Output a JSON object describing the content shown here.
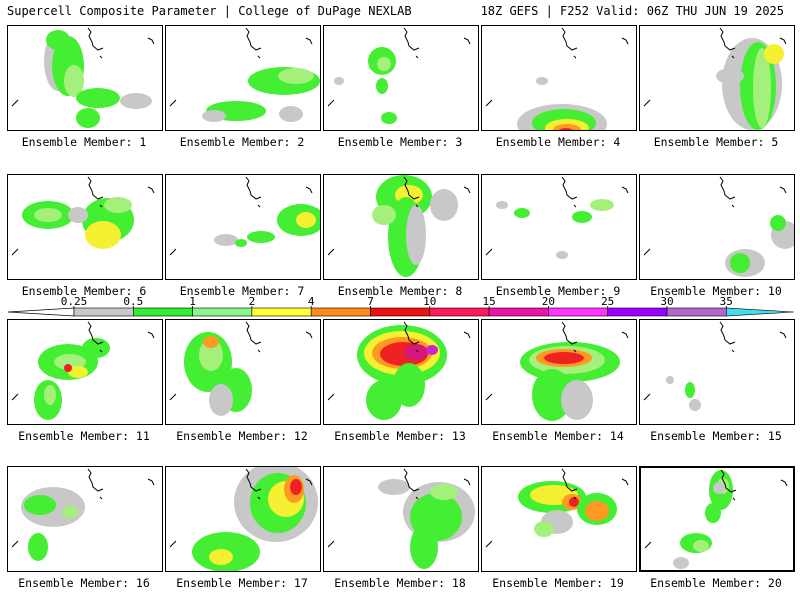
{
  "header": {
    "title": "Supercell Composite Parameter | College of DuPage NEXLAB",
    "run_info": "18Z GEFS | F252 Valid: 06Z THU JUN 19 2025"
  },
  "member_label_prefix": "Ensemble Member: ",
  "members": [
    {
      "id": "1"
    },
    {
      "id": "2"
    },
    {
      "id": "3"
    },
    {
      "id": "4"
    },
    {
      "id": "5"
    },
    {
      "id": "6"
    },
    {
      "id": "7"
    },
    {
      "id": "8"
    },
    {
      "id": "9"
    },
    {
      "id": "10"
    },
    {
      "id": "11"
    },
    {
      "id": "12"
    },
    {
      "id": "13"
    },
    {
      "id": "14"
    },
    {
      "id": "15"
    },
    {
      "id": "16"
    },
    {
      "id": "17"
    },
    {
      "id": "18"
    },
    {
      "id": "19"
    },
    {
      "id": "20"
    }
  ],
  "selected_member": "20",
  "colorbar": {
    "ticks": [
      "0.25",
      "0.5",
      "1",
      "2",
      "4",
      "7",
      "10",
      "15",
      "20",
      "25",
      "30",
      "35"
    ],
    "colors": [
      "#c8c8c8",
      "#33ee33",
      "#8ef58e",
      "#ffff33",
      "#ff8c1a",
      "#ee1111",
      "#ff1a5e",
      "#ee11aa",
      "#ff33ff",
      "#9900ff",
      "#b366cc",
      "#44ddee"
    ]
  },
  "blob_palette": {
    "gray": "#c8c8c8",
    "green": "#44ee33",
    "lgreen": "#a4f07a",
    "yellow": "#f5f032",
    "orange": "#ff9922",
    "red": "#ee2222",
    "dred": "#cc0000",
    "magenta": "#d4177a",
    "purple": "#cc22cc"
  }
}
